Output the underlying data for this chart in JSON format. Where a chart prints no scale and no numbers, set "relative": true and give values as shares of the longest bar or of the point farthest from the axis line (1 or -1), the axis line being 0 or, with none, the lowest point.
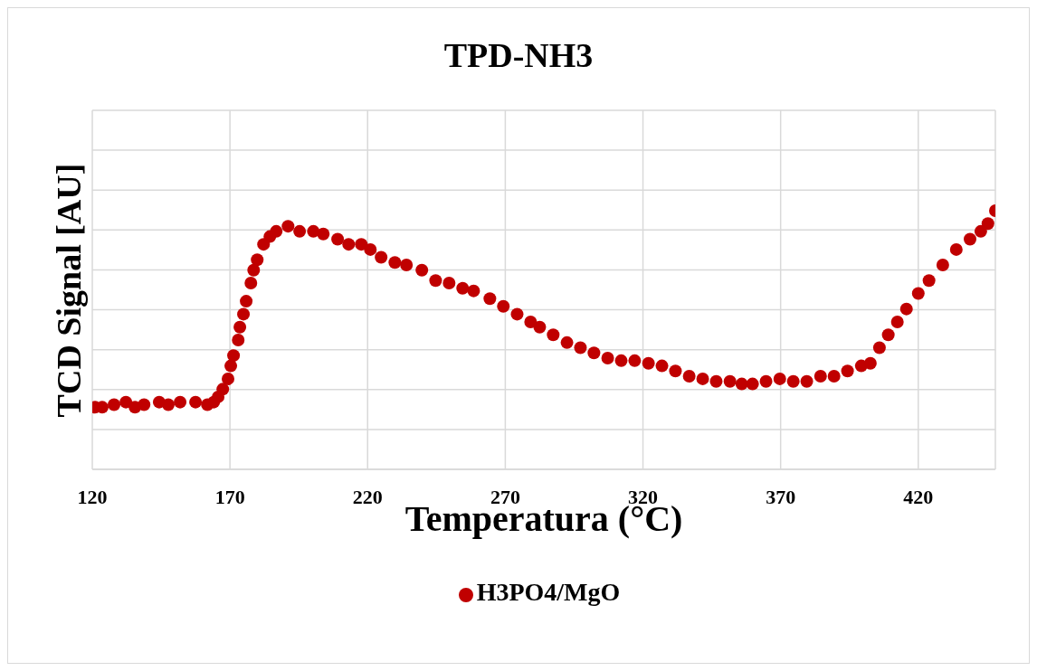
{
  "chart_data": {
    "type": "scatter",
    "title": "TPD-NH3",
    "xlabel": "Temperatura (°C)",
    "ylabel": "TCD Signal [AU]",
    "relative": true,
    "marker": "circle",
    "grid": true,
    "legend": "bottom",
    "xlim": [
      120,
      448
    ],
    "xticks": [
      120,
      170,
      220,
      270,
      320,
      370,
      420
    ],
    "series": [
      {
        "name": "H3PO4/MgO",
        "color": "#c00000",
        "x": [
          121,
          123.6,
          127.9,
          132.2,
          135.5,
          138.8,
          144.3,
          147.6,
          151.9,
          157.5,
          161.8,
          164.1,
          165.7,
          167.4,
          169.3,
          170.3,
          171.3,
          173,
          173.6,
          174.9,
          175.9,
          177.6,
          178.6,
          179.9,
          182.2,
          184.5,
          186.8,
          191.1,
          195.3,
          200.3,
          203.9,
          209.1,
          213.1,
          217.7,
          221,
          224.9,
          229.9,
          234.1,
          239.7,
          244.7,
          249.6,
          254.5,
          258.5,
          264.4,
          269.3,
          274.3,
          279.2,
          282.5,
          287.4,
          292.4,
          297.3,
          302.2,
          307.2,
          312.1,
          317,
          322,
          326.9,
          331.8,
          336.8,
          341.7,
          346.6,
          351.6,
          355.9,
          359.8,
          364.7,
          369.7,
          374.6,
          379.5,
          384.5,
          389.4,
          394.3,
          399.3,
          402.6,
          405.9,
          409.1,
          412.4,
          415.7,
          420,
          423.9,
          428.9,
          433.8,
          438.8,
          442.7,
          445.3,
          448
        ],
        "values": [
          0.24,
          0.24,
          0.25,
          0.26,
          0.24,
          0.25,
          0.26,
          0.25,
          0.26,
          0.26,
          0.25,
          0.26,
          0.28,
          0.31,
          0.35,
          0.4,
          0.44,
          0.5,
          0.55,
          0.6,
          0.65,
          0.72,
          0.77,
          0.81,
          0.87,
          0.9,
          0.92,
          0.94,
          0.92,
          0.92,
          0.91,
          0.89,
          0.87,
          0.87,
          0.85,
          0.82,
          0.8,
          0.79,
          0.77,
          0.73,
          0.72,
          0.7,
          0.69,
          0.66,
          0.63,
          0.6,
          0.57,
          0.55,
          0.52,
          0.49,
          0.47,
          0.45,
          0.43,
          0.42,
          0.42,
          0.41,
          0.4,
          0.38,
          0.36,
          0.35,
          0.34,
          0.34,
          0.33,
          0.33,
          0.34,
          0.35,
          0.34,
          0.34,
          0.36,
          0.36,
          0.38,
          0.4,
          0.41,
          0.47,
          0.52,
          0.57,
          0.62,
          0.68,
          0.73,
          0.79,
          0.85,
          0.89,
          0.92,
          0.95,
          1
        ]
      }
    ]
  }
}
